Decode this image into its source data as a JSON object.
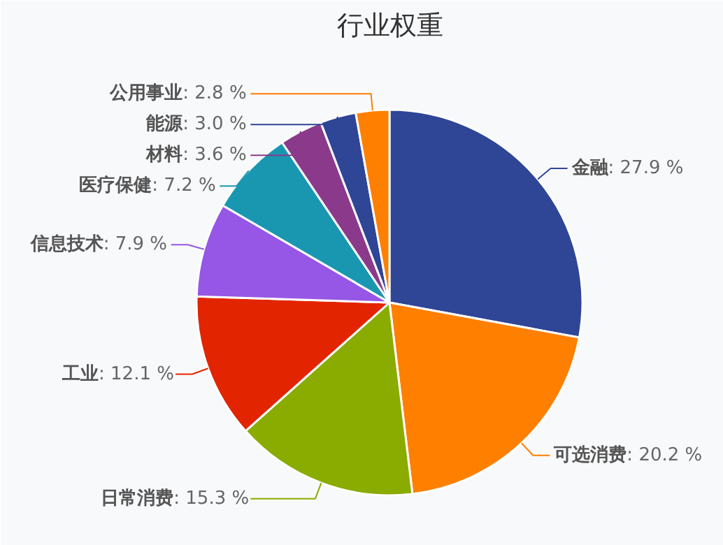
{
  "chart_data": {
    "type": "pie",
    "title": "行业权重",
    "categories": [
      "金融",
      "可选消费",
      "日常消费",
      "工业",
      "信息技术",
      "医疗保健",
      "材料",
      "能源",
      "公用事业"
    ],
    "values": [
      27.9,
      20.2,
      15.3,
      12.1,
      7.9,
      7.2,
      3.6,
      3.0,
      2.8
    ],
    "colors": [
      "#2f4596",
      "#ff7f00",
      "#8aab00",
      "#e32400",
      "#9657e6",
      "#1a97b0",
      "#8b3a8b",
      "#2f4596",
      "#ff7f00"
    ],
    "value_labels": [
      ": 27.9 %",
      ": 20.2 %",
      ": 15.3 %",
      ": 12.1 %",
      ": 7.9 %",
      ": 7.2 %",
      ": 3.6 %",
      ": 3.0 %",
      ": 2.8 %"
    ]
  }
}
